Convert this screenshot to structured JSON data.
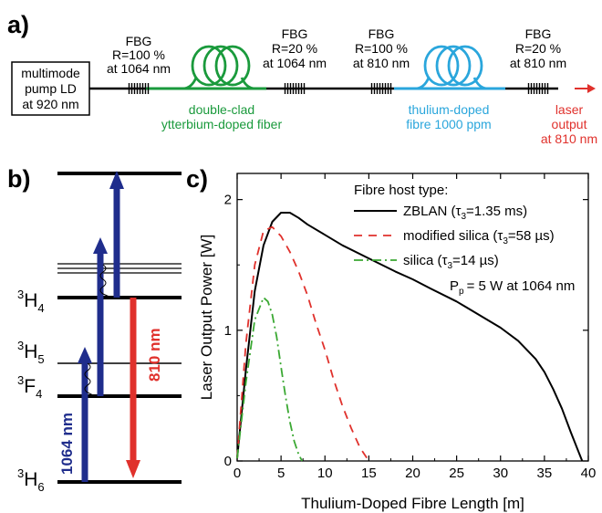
{
  "panel_a": {
    "label": "a)",
    "pump": {
      "line1": "multimode",
      "line2": "pump LD",
      "line3": "at 920 nm"
    },
    "fbg1": {
      "l1": "FBG",
      "l2": "R=100 %",
      "l3": "at 1064 nm"
    },
    "fbg2": {
      "l1": "FBG",
      "l2": "R=20 %",
      "l3": "at 1064 nm"
    },
    "fbg3": {
      "l1": "FBG",
      "l2": "R=100 %",
      "l3": "at 810 nm"
    },
    "fbg4": {
      "l1": "FBG",
      "l2": "R=20 %",
      "l3": "at 810 nm"
    },
    "yb_fiber": {
      "l1": "double-clad",
      "l2": "ytterbium-doped fiber"
    },
    "tm_fiber": {
      "l1": "thulium-doped",
      "l2": "fibre 1000 ppm"
    },
    "output": {
      "l1": "laser",
      "l2": "output",
      "l3": "at 810 nm"
    },
    "colors": {
      "yb": "#1a9a3c",
      "tm": "#2aa6dc",
      "out": "#e0312c"
    }
  },
  "panel_b": {
    "label": "b)",
    "levels": {
      "H4": "H",
      "H4_sup": "3",
      "H4_sub": "4",
      "H5": "H",
      "H5_sup": "3",
      "H5_sub": "5",
      "F4": "F",
      "F4_sup": "3",
      "F4_sub": "4",
      "H6": "H",
      "H6_sup": "3",
      "H6_sub": "6"
    },
    "pump_label": "1064 nm",
    "emission_label": "810 nm",
    "colors": {
      "pump": "#1f2d8c",
      "emission": "#e0312c"
    }
  },
  "panel_c": {
    "label": "c)"
  },
  "chart_data": {
    "type": "line",
    "xlabel": "Thulium-Doped Fibre Length [m]",
    "ylabel": "Laser Output Power [W]",
    "xlim": [
      0,
      40
    ],
    "ylim": [
      0,
      2.2
    ],
    "xticks": [
      "0",
      "5",
      "10",
      "15",
      "20",
      "25",
      "30",
      "35",
      "40"
    ],
    "yticks": [
      "0",
      "1",
      "2"
    ],
    "legend": {
      "title": "Fibre host type:",
      "pump_note": "P",
      "pump_note_sub": "p",
      "pump_note_rest": "= 5 W at 1064 nm",
      "placement": "top-right"
    },
    "series": [
      {
        "name": "ZBLAN (τ3=1.35 ms)",
        "label_main": "ZBLAN (",
        "label_tau": "τ",
        "label_sub": "3",
        "label_rest": "=1.35 ms)",
        "color": "#000000",
        "dash": "solid",
        "points": [
          [
            0,
            0.02
          ],
          [
            1,
            0.7
          ],
          [
            2,
            1.3
          ],
          [
            3,
            1.65
          ],
          [
            4,
            1.83
          ],
          [
            5,
            1.9
          ],
          [
            6,
            1.9
          ],
          [
            7,
            1.86
          ],
          [
            8,
            1.81
          ],
          [
            10,
            1.73
          ],
          [
            12,
            1.65
          ],
          [
            15,
            1.55
          ],
          [
            18,
            1.45
          ],
          [
            20,
            1.39
          ],
          [
            22,
            1.32
          ],
          [
            25,
            1.22
          ],
          [
            28,
            1.1
          ],
          [
            30,
            1.02
          ],
          [
            32,
            0.92
          ],
          [
            34,
            0.78
          ],
          [
            35,
            0.68
          ],
          [
            36,
            0.55
          ],
          [
            37,
            0.4
          ],
          [
            38,
            0.22
          ],
          [
            39,
            0.05
          ],
          [
            39.3,
            0
          ]
        ]
      },
      {
        "name": "modified silica (τ3=58 µs)",
        "label_main": "modified silica (",
        "label_tau": "τ",
        "label_sub": "3",
        "label_rest": "=58 µs)",
        "color": "#e0312c",
        "dash": "dashed",
        "points": [
          [
            0,
            0.02
          ],
          [
            1,
            0.9
          ],
          [
            2,
            1.5
          ],
          [
            3,
            1.76
          ],
          [
            4,
            1.79
          ],
          [
            5,
            1.72
          ],
          [
            6,
            1.6
          ],
          [
            7,
            1.45
          ],
          [
            8,
            1.27
          ],
          [
            9,
            1.05
          ],
          [
            10,
            0.85
          ],
          [
            11,
            0.62
          ],
          [
            12,
            0.42
          ],
          [
            13,
            0.25
          ],
          [
            14,
            0.1
          ],
          [
            15,
            0
          ]
        ]
      },
      {
        "name": "silica (τ3=14 µs)",
        "label_main": "silica (",
        "label_tau": "τ",
        "label_sub": "3",
        "label_rest": "=14 µs)",
        "color": "#3aa832",
        "dash": "dashdot",
        "points": [
          [
            0,
            0.02
          ],
          [
            1,
            0.6
          ],
          [
            2,
            1.08
          ],
          [
            3,
            1.25
          ],
          [
            3.5,
            1.22
          ],
          [
            4,
            1.12
          ],
          [
            4.5,
            0.95
          ],
          [
            5,
            0.72
          ],
          [
            5.5,
            0.5
          ],
          [
            6,
            0.3
          ],
          [
            6.5,
            0.15
          ],
          [
            7,
            0.05
          ],
          [
            7.4,
            0
          ]
        ]
      }
    ]
  }
}
